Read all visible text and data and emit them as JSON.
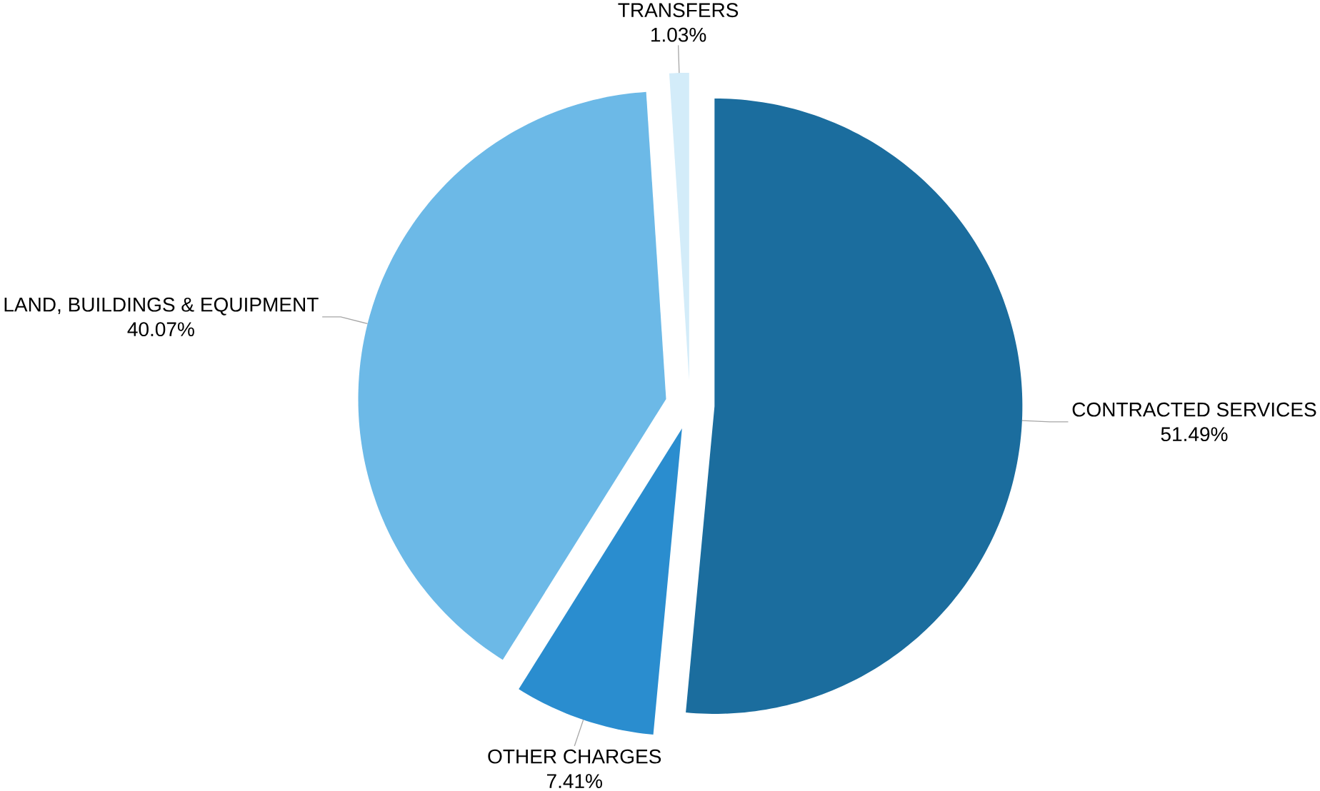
{
  "chart_data": {
    "type": "pie",
    "categories": [
      "CONTRACTED SERVICES",
      "OTHER CHARGES",
      "LAND, BUILDINGS & EQUIPMENT",
      "TRANSFERS"
    ],
    "values": [
      51.49,
      7.41,
      40.07,
      1.03
    ],
    "value_labels": [
      "51.49%",
      "7.41%",
      "40.07%",
      "1.03%"
    ],
    "colors": [
      "#1b6d9e",
      "#2a8dcf",
      "#6cb9e7",
      "#d3ecf9"
    ]
  }
}
